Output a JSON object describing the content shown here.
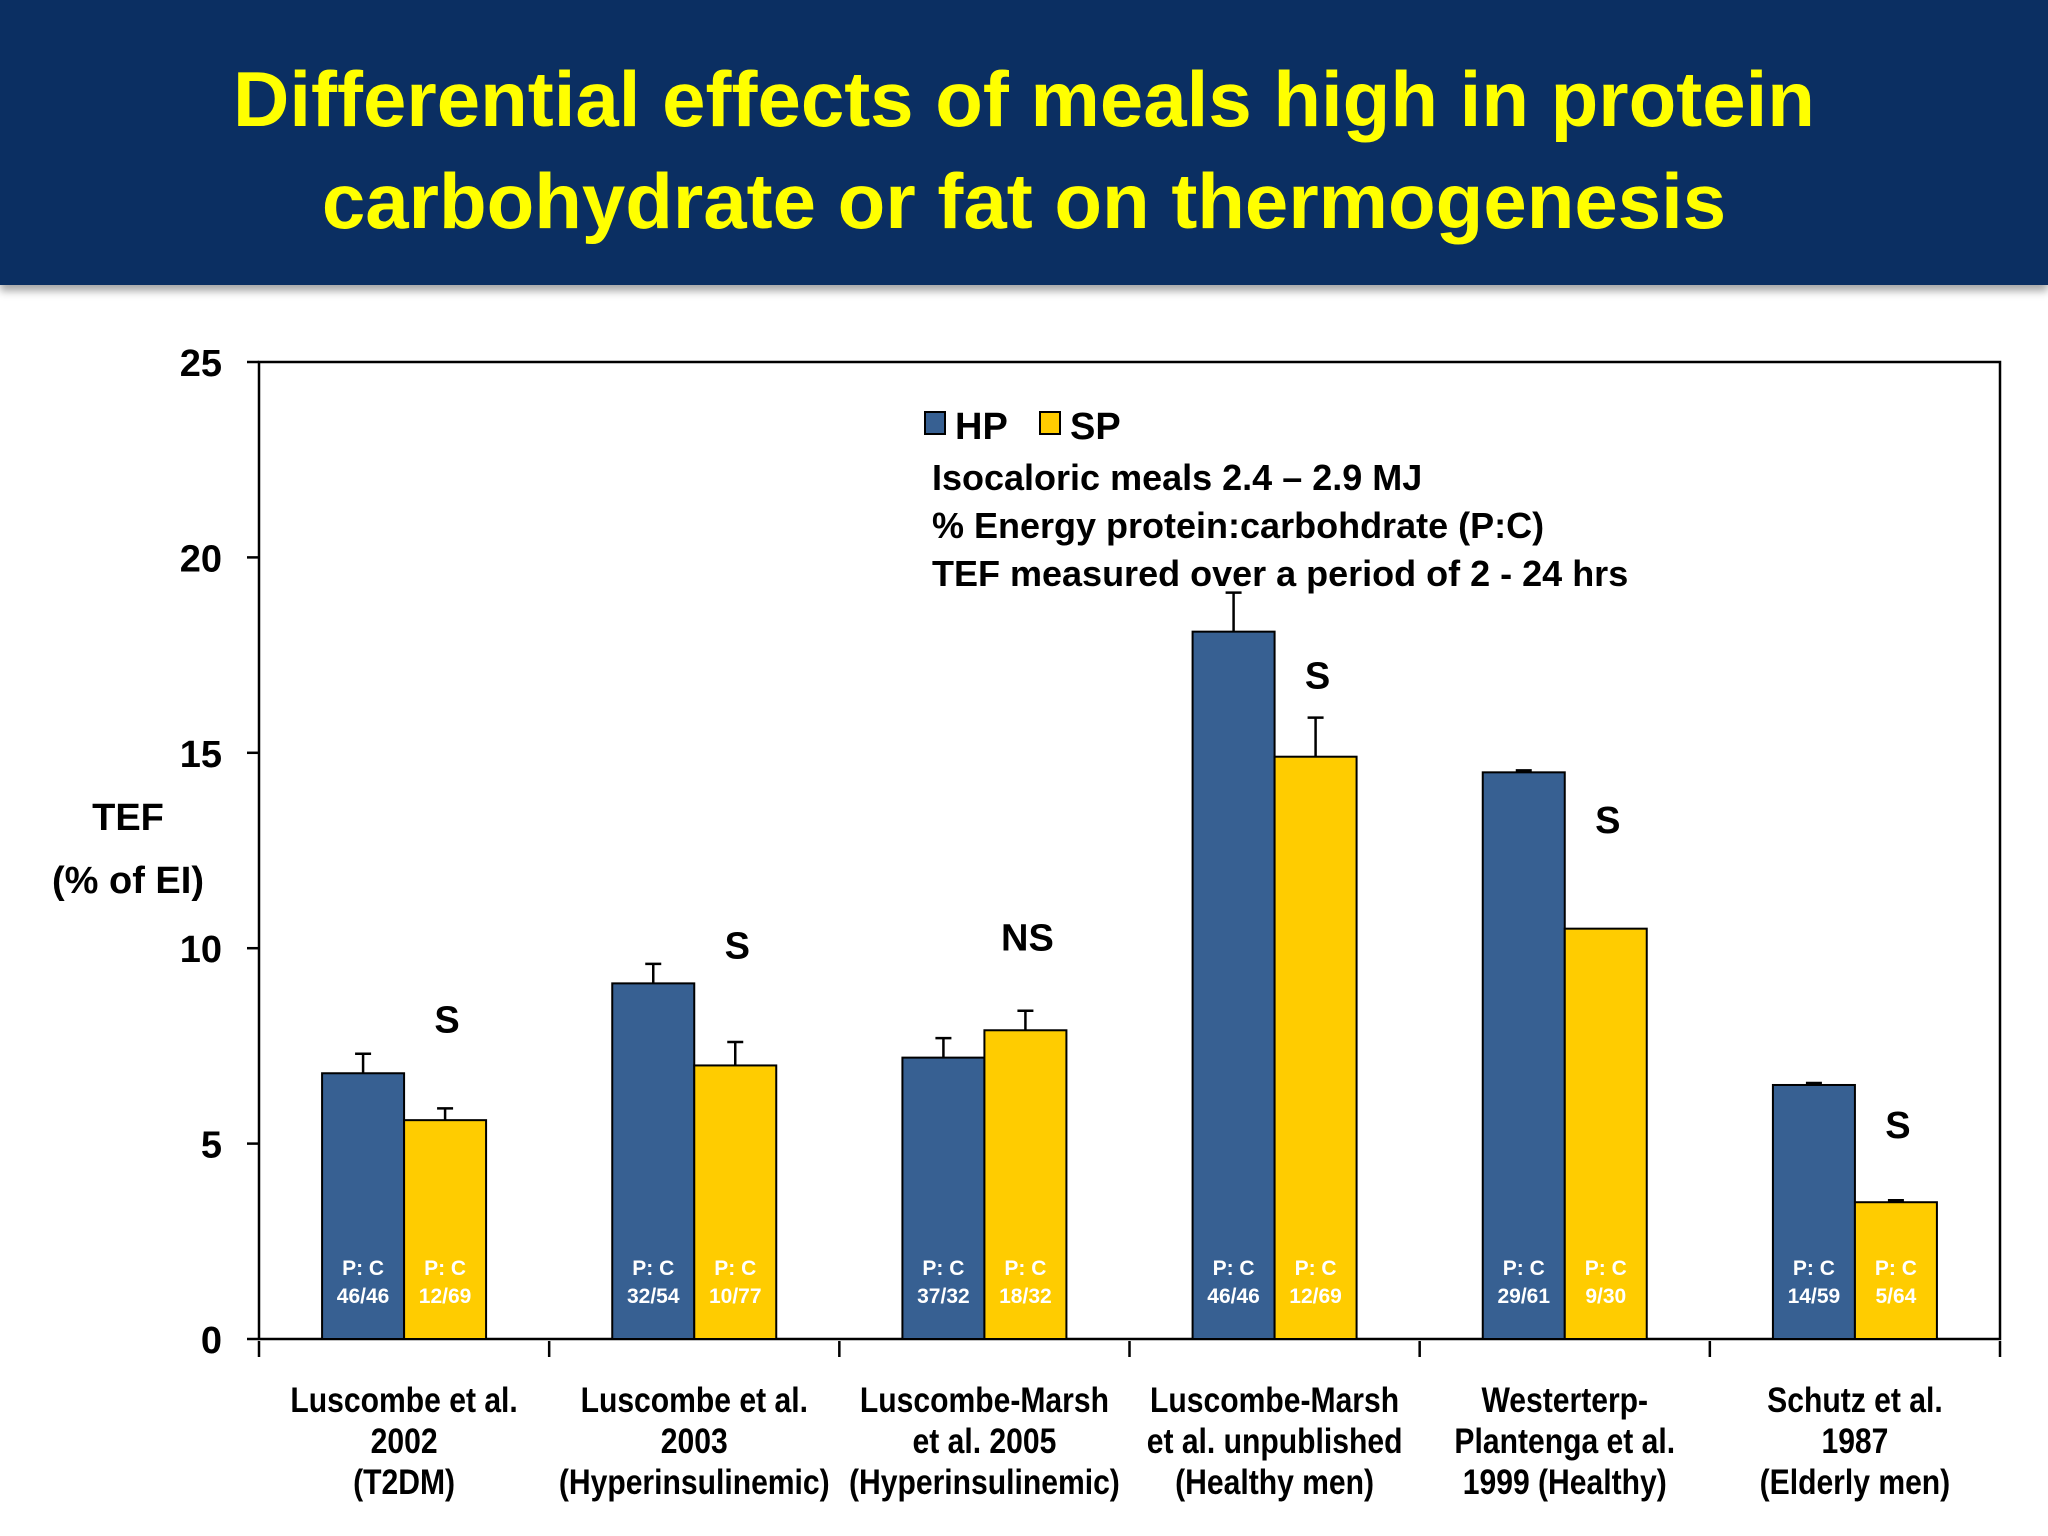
{
  "title": {
    "line1": "Differential effects of meals high in protein",
    "line2": "carbohydrate or fat on thermogenesis"
  },
  "colors": {
    "header_bg": "#0b2f62",
    "title": "#ffff00",
    "HP": "#376092",
    "SP": "#ffcc00"
  },
  "chart_data": {
    "type": "bar",
    "ylabel": [
      "TEF",
      "(% of EI)"
    ],
    "ylim": [
      0,
      25
    ],
    "yticks": [
      0,
      5,
      10,
      15,
      20,
      25
    ],
    "grid": false,
    "legend_position": "top-center",
    "legend": [
      "HP",
      "SP"
    ],
    "notes": [
      "Isocaloric meals 2.4 – 2.9 MJ",
      "% Energy protein:carbohdrate (P:C)",
      "TEF measured over a period of 2 - 24 hrs"
    ],
    "categories": [
      [
        "Luscombe et al.",
        "2002",
        "(T2DM)"
      ],
      [
        "Luscombe et al.",
        "2003",
        "(Hyperinsulinemic)"
      ],
      [
        "Luscombe-Marsh",
        "et al. 2005",
        "(Hyperinsulinemic)"
      ],
      [
        "Luscombe-Marsh",
        "et al. unpublished",
        "(Healthy men)"
      ],
      [
        "Westerterp-",
        "Plantenga et al.",
        "1999 (Healthy)"
      ],
      [
        "Schutz et al.",
        "1987",
        "(Elderly men)"
      ]
    ],
    "series": [
      {
        "name": "HP",
        "values": [
          6.8,
          9.1,
          7.2,
          18.1,
          14.5,
          6.5
        ],
        "error": [
          0.5,
          0.5,
          0.5,
          1.0,
          0.05,
          0.05
        ],
        "pc_labels": [
          "46/46",
          "32/54",
          "37/32",
          "46/46",
          "29/61",
          "14/59"
        ]
      },
      {
        "name": "SP",
        "values": [
          5.6,
          7.0,
          7.9,
          14.9,
          10.5,
          3.5
        ],
        "error": [
          0.3,
          0.6,
          0.5,
          1.0,
          0.0,
          0.05
        ],
        "pc_labels": [
          "12/69",
          "10/77",
          "18/32",
          "12/69",
          "9/30",
          "5/64"
        ]
      }
    ],
    "pc_prefix": "P: C",
    "significance": [
      {
        "label": "S",
        "y": 8.2
      },
      {
        "label": "S",
        "y": 10.1
      },
      {
        "label": "NS",
        "y": 10.3
      },
      {
        "label": "S",
        "y": 17.0
      },
      {
        "label": "S",
        "y": 13.3
      },
      {
        "label": "S",
        "y": 5.5
      }
    ]
  }
}
